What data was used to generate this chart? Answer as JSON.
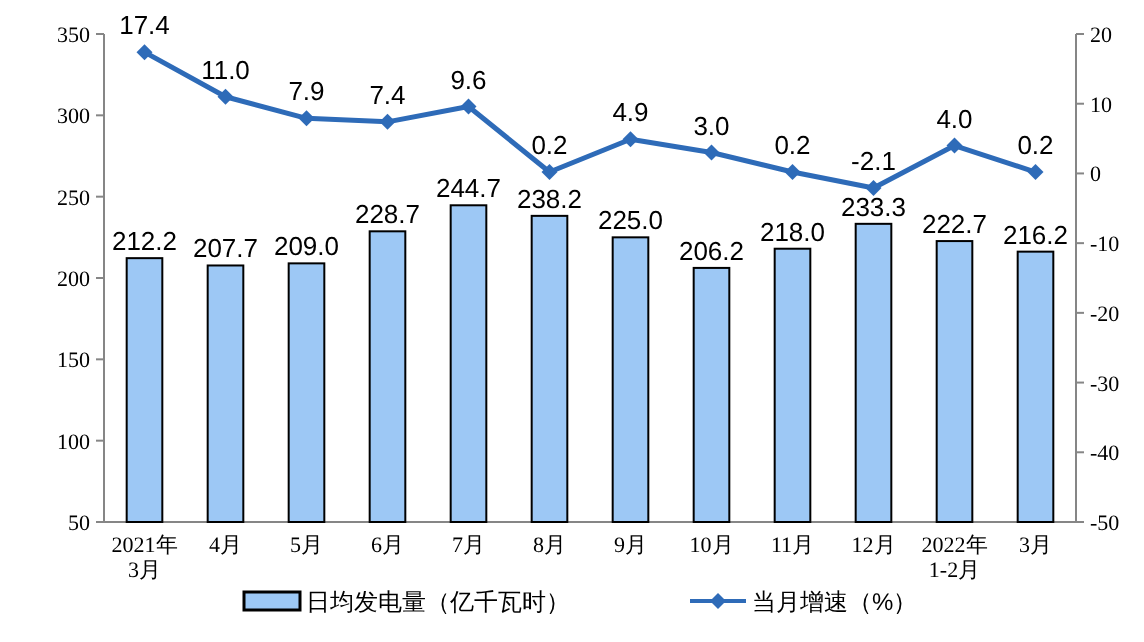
{
  "chart_data": {
    "type": "bar",
    "categories": [
      "2021年\n3月",
      "4月",
      "5月",
      "6月",
      "7月",
      "8月",
      "9月",
      "10月",
      "11月",
      "12月",
      "2022年\n1-2月",
      "3月"
    ],
    "series": [
      {
        "name": "日均发电量（亿千瓦时）",
        "color": "#9dc8f5",
        "values": [
          212.2,
          207.7,
          209.0,
          228.7,
          244.7,
          238.2,
          225.0,
          206.2,
          218.0,
          233.3,
          222.7,
          216.2
        ],
        "value_labels": [
          "212.2",
          "207.7",
          "209.0",
          "228.7",
          "244.7",
          "238.2",
          "225.0",
          "206.2",
          "218.0",
          "233.3",
          "222.7",
          "216.2"
        ]
      },
      {
        "name": "当月增速（%）",
        "type": "line",
        "axis": "y2",
        "color": "#2e6bb8",
        "marker": "diamond",
        "values": [
          17.4,
          11.0,
          7.9,
          7.4,
          9.6,
          0.2,
          4.9,
          3.0,
          0.2,
          -2.1,
          4.0,
          0.2
        ],
        "value_labels": [
          "17.4",
          "11.0",
          "7.9",
          "7.4",
          "9.6",
          "0.2",
          "4.9",
          "3.0",
          "0.2",
          "-2.1",
          "4.0",
          "0.2"
        ]
      }
    ],
    "ylim": [
      50,
      350
    ],
    "yticks": [
      50,
      100,
      150,
      200,
      250,
      300,
      350
    ],
    "y2lim": [
      -50,
      20
    ],
    "y2ticks": [
      -50,
      -40,
      -30,
      -20,
      -10,
      0,
      10,
      20
    ],
    "legend": "bottom",
    "grid": false
  }
}
